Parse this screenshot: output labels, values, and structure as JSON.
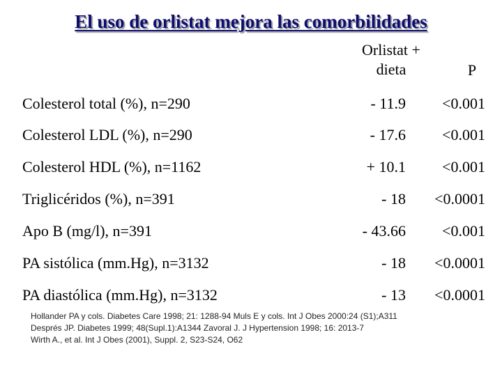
{
  "title": "El uso de orlistat mejora las comorbilidades",
  "header": {
    "col_treatment_line1": "Orlistat +",
    "col_treatment_line2": "dieta",
    "col_p": "P"
  },
  "rows": [
    {
      "label": "Colesterol total (%), n=290",
      "value": "- 11.9",
      "p": "<0.001"
    },
    {
      "label": "Colesterol LDL (%), n=290",
      "value": "- 17.6",
      "p": "<0.001"
    },
    {
      "label": "Colesterol HDL (%), n=1162",
      "value": "+ 10.1",
      "p": "<0.001"
    },
    {
      "label": "Triglicéridos (%), n=391",
      "value": "- 18",
      "p": "<0.0001"
    },
    {
      "label": "Apo B (mg/l), n=391",
      "value": "- 43.66",
      "p": "<0.001"
    },
    {
      "label": "PA sistólica (mm.Hg), n=3132",
      "value": "- 18",
      "p": "<0.0001"
    },
    {
      "label": "PA diastólica (mm.Hg), n=3132",
      "value": "- 13",
      "p": "<0.0001"
    }
  ],
  "references": [
    "Hollander PA y cols. Diabetes Care 1998; 21: 1288-94 Muls E y cols. Int J Obes 2000:24 (S1);A311",
    "Després JP. Diabetes 1999; 48(Supl.1):A1344 Zavoral J. J Hypertension 1998; 16: 2013-7",
    "Wirth A., et al. Int J Obes (2001), Suppl. 2, S23-S24, O62"
  ]
}
